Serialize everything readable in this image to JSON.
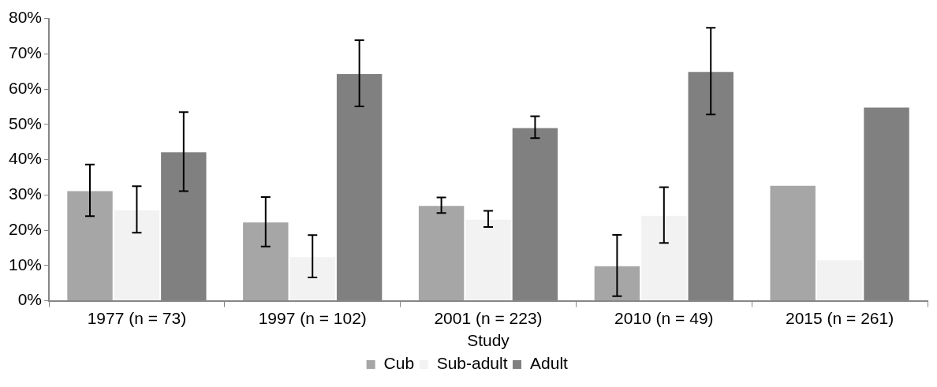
{
  "chart_data": {
    "type": "bar",
    "xlabel": "Study",
    "categories": [
      "1977 (n = 73)",
      "1997 (n = 102)",
      "2001 (n = 223)",
      "2010 (n = 49)",
      "2015 (n = 261)"
    ],
    "series": [
      {
        "name": "Cub",
        "color": "#a6a6a6",
        "values": [
          31.3,
          22.4,
          27.1,
          10.0,
          32.8
        ],
        "errors": [
          7.3,
          7.0,
          2.2,
          8.7,
          null
        ]
      },
      {
        "name": "Sub-adult",
        "color": "#f2f2f2",
        "values": [
          25.9,
          12.6,
          23.2,
          24.3,
          11.7
        ],
        "errors": [
          6.6,
          6.0,
          2.3,
          7.9,
          null
        ]
      },
      {
        "name": "Adult",
        "color": "#808080",
        "values": [
          42.3,
          64.5,
          49.2,
          65.1,
          55.0
        ],
        "errors": [
          11.2,
          9.4,
          3.1,
          12.3,
          null
        ]
      }
    ],
    "ylim": [
      0,
      80
    ],
    "yticks": [
      {
        "value": 0,
        "label": "0%"
      },
      {
        "value": 10,
        "label": "10%"
      },
      {
        "value": 20,
        "label": "20%"
      },
      {
        "value": 30,
        "label": "30%"
      },
      {
        "value": 40,
        "label": "40%"
      },
      {
        "value": 50,
        "label": "50%"
      },
      {
        "value": 60,
        "label": "60%"
      },
      {
        "value": 70,
        "label": "70%"
      },
      {
        "value": 80,
        "label": "80%"
      }
    ],
    "grid": false,
    "legend": "bottom"
  }
}
